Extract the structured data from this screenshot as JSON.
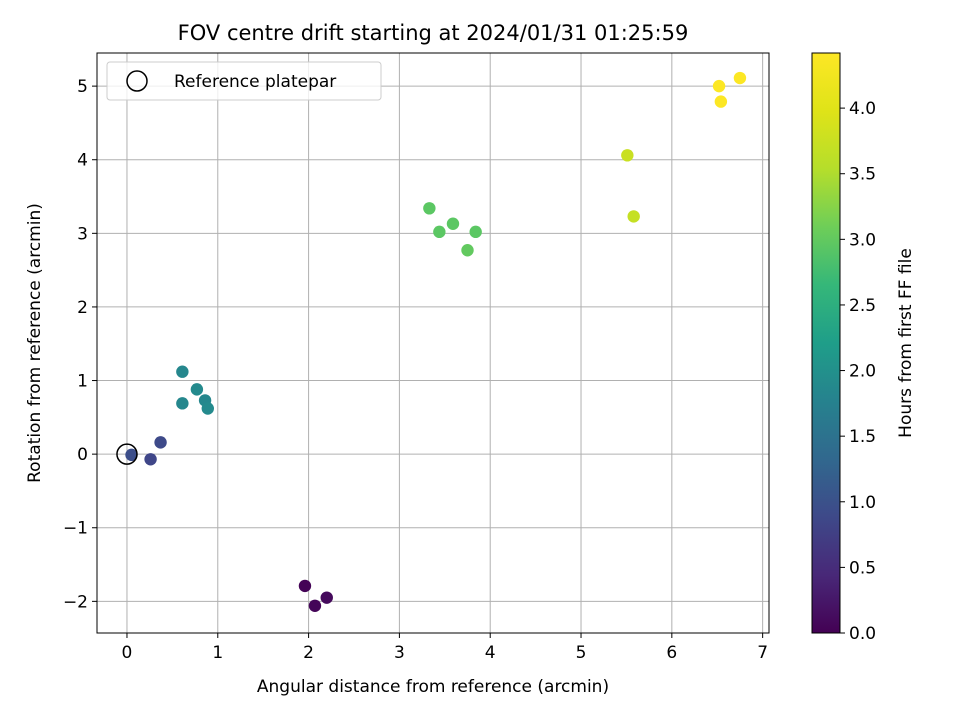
{
  "chart_data": {
    "type": "scatter",
    "title": "FOV centre drift starting at 2024/01/31 01:25:59",
    "xlabel": "Angular distance from reference (arcmin)",
    "ylabel": "Rotation from reference (arcmin)",
    "xlim": [
      -0.33,
      7.07
    ],
    "ylim": [
      -2.43,
      5.45
    ],
    "xticks": [
      0,
      1,
      2,
      3,
      4,
      5,
      6,
      7
    ],
    "yticks": [
      -2,
      -1,
      0,
      1,
      2,
      3,
      4,
      5
    ],
    "grid": true,
    "legend": {
      "position": "top-left",
      "entries": [
        "Reference platepar"
      ]
    },
    "reference_point": {
      "x": 0,
      "y": 0
    },
    "colorbar": {
      "label": "Hours from first FF file",
      "range": [
        0.0,
        4.42
      ],
      "ticks": [
        "0.0",
        "0.5",
        "1.0",
        "1.5",
        "2.0",
        "2.5",
        "3.0",
        "3.5",
        "4.0"
      ],
      "colormap": "viridis"
    },
    "points": [
      {
        "x": 1.96,
        "y": -1.79,
        "c": 0.02
      },
      {
        "x": 2.07,
        "y": -2.06,
        "c": 0.05
      },
      {
        "x": 2.2,
        "y": -1.95,
        "c": 0.1
      },
      {
        "x": 0.05,
        "y": -0.01,
        "c": 0.95
      },
      {
        "x": 0.26,
        "y": -0.07,
        "c": 0.85
      },
      {
        "x": 0.37,
        "y": 0.16,
        "c": 0.9
      },
      {
        "x": 0.61,
        "y": 1.12,
        "c": 1.85
      },
      {
        "x": 0.61,
        "y": 0.69,
        "c": 1.85
      },
      {
        "x": 0.77,
        "y": 0.88,
        "c": 1.9
      },
      {
        "x": 0.86,
        "y": 0.73,
        "c": 1.85
      },
      {
        "x": 0.89,
        "y": 0.62,
        "c": 1.9
      },
      {
        "x": 3.33,
        "y": 3.34,
        "c": 2.95
      },
      {
        "x": 3.44,
        "y": 3.02,
        "c": 2.95
      },
      {
        "x": 3.59,
        "y": 3.13,
        "c": 2.95
      },
      {
        "x": 3.75,
        "y": 2.77,
        "c": 3.0
      },
      {
        "x": 3.84,
        "y": 3.02,
        "c": 2.95
      },
      {
        "x": 5.51,
        "y": 4.06,
        "c": 3.75
      },
      {
        "x": 5.58,
        "y": 3.23,
        "c": 3.7
      },
      {
        "x": 6.52,
        "y": 5.0,
        "c": 4.4
      },
      {
        "x": 6.54,
        "y": 4.79,
        "c": 4.4
      },
      {
        "x": 6.75,
        "y": 5.11,
        "c": 4.4
      }
    ]
  }
}
